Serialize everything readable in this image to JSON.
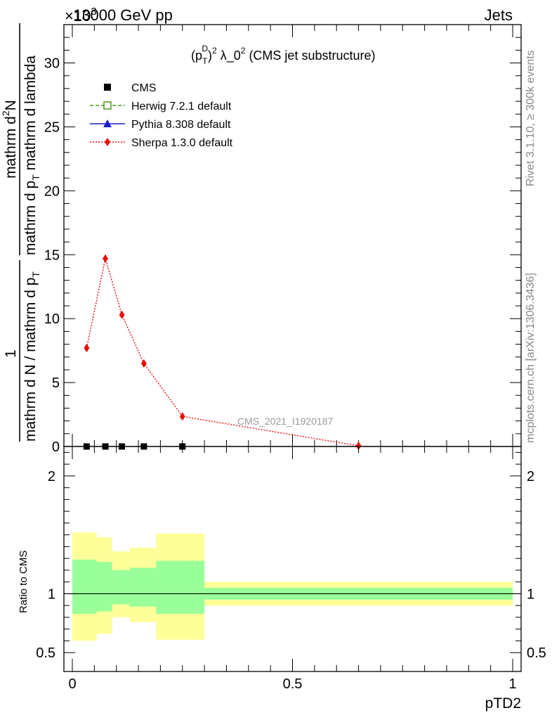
{
  "header": {
    "left": "13000 GeV pp",
    "right": "Jets",
    "exponent": "×10",
    "exponent_power": "3"
  },
  "side_labels": {
    "rivet": "Rivet 3.1.10, ≥ 300k events",
    "mcplots": "mcplots.cern.ch [arXiv:1306.3436]"
  },
  "chart_data": [
    {
      "type": "line",
      "title": "(p_T^D)^2 λ_0^2 (CMS jet substructure)",
      "title_parts": {
        "open": "(p",
        "sup1": "D",
        "sub1": "T",
        "close": ")",
        "sup2": "2",
        "mid": " λ_0",
        "sup3": "2",
        "tail": " (CMS jet substructure)"
      },
      "ylabel": "1 / (mathrm d N / mathrm d p_T) · mathrm d²N / (mathrm d p_T mathrm d lambda)",
      "ylabel_parts": {
        "numerator_left": "1",
        "denominator_left": "mathrm d N / mathrm d p",
        "sub_T": "T",
        "numerator_right": "mathrm d",
        "sup_2": "2",
        "numerator_right_tail": "N",
        "denominator_right": "mathrm d p",
        "denominator_right_tail": " mathrm d lambda"
      },
      "watermark": "CMS_2021_I1920187",
      "xlim": [
        0,
        1
      ],
      "ylim": [
        0,
        33
      ],
      "y_ticks": [
        0,
        5,
        10,
        15,
        20,
        25,
        30
      ],
      "legend_position": "top-left",
      "legend": [
        {
          "name": "CMS",
          "color": "#000000",
          "marker": "square",
          "line": "none"
        },
        {
          "name": "Herwig 7.2.1 default",
          "color": "#4a9a1a",
          "marker": "open-square",
          "line": "dashed"
        },
        {
          "name": "Pythia 8.308 default",
          "color": "#1c1cc8",
          "marker": "triangle",
          "line": "solid"
        },
        {
          "name": "Sherpa 1.3.0 default",
          "color": "#e8100a",
          "marker": "diamond",
          "line": "dotted"
        }
      ],
      "series": [
        {
          "name": "CMS",
          "color": "#000000",
          "points": [
            [
              0.0325,
              0
            ],
            [
              0.075,
              0
            ],
            [
              0.1125,
              0
            ],
            [
              0.1625,
              0
            ],
            [
              0.25,
              0
            ]
          ]
        },
        {
          "name": "Sherpa 1.3.0 default",
          "color": "#e8100a",
          "points": [
            [
              0.0325,
              7.7
            ],
            [
              0.075,
              14.7
            ],
            [
              0.1125,
              10.3
            ],
            [
              0.1625,
              6.5
            ],
            [
              0.25,
              2.35
            ],
            [
              0.65,
              0.05
            ]
          ]
        }
      ]
    },
    {
      "type": "area",
      "ylabel": "Ratio to CMS",
      "xlabel": "pTD2",
      "xlim": [
        0,
        1
      ],
      "ylim": [
        0.34,
        2.25
      ],
      "x_ticks": [
        {
          "v": 0,
          "label": "0"
        },
        {
          "v": 0.5,
          "label": "0.5"
        },
        {
          "v": 1,
          "label": "1"
        }
      ],
      "y_ticks": [
        {
          "v": 0.5,
          "label": "0.5"
        },
        {
          "v": 1,
          "label": "1"
        },
        {
          "v": 2,
          "label": "2"
        }
      ],
      "bands": [
        {
          "x0": 0.0,
          "x1": 0.055,
          "yellow": [
            0.6,
            1.52
          ],
          "green": [
            0.83,
            1.29
          ]
        },
        {
          "x0": 0.055,
          "x1": 0.09,
          "yellow": [
            0.66,
            1.48
          ],
          "green": [
            0.85,
            1.27
          ]
        },
        {
          "x0": 0.09,
          "x1": 0.13,
          "yellow": [
            0.8,
            1.36
          ],
          "green": [
            0.91,
            1.2
          ]
        },
        {
          "x0": 0.13,
          "x1": 0.19,
          "yellow": [
            0.76,
            1.39
          ],
          "green": [
            0.89,
            1.22
          ]
        },
        {
          "x0": 0.19,
          "x1": 0.3,
          "yellow": [
            0.61,
            1.51
          ],
          "green": [
            0.83,
            1.28
          ]
        },
        {
          "x0": 0.3,
          "x1": 1.0,
          "yellow": [
            0.9,
            1.1
          ],
          "green": [
            0.95,
            1.05
          ]
        }
      ],
      "colors": {
        "yellow": "#ffff99",
        "green": "#99ff99"
      }
    }
  ]
}
